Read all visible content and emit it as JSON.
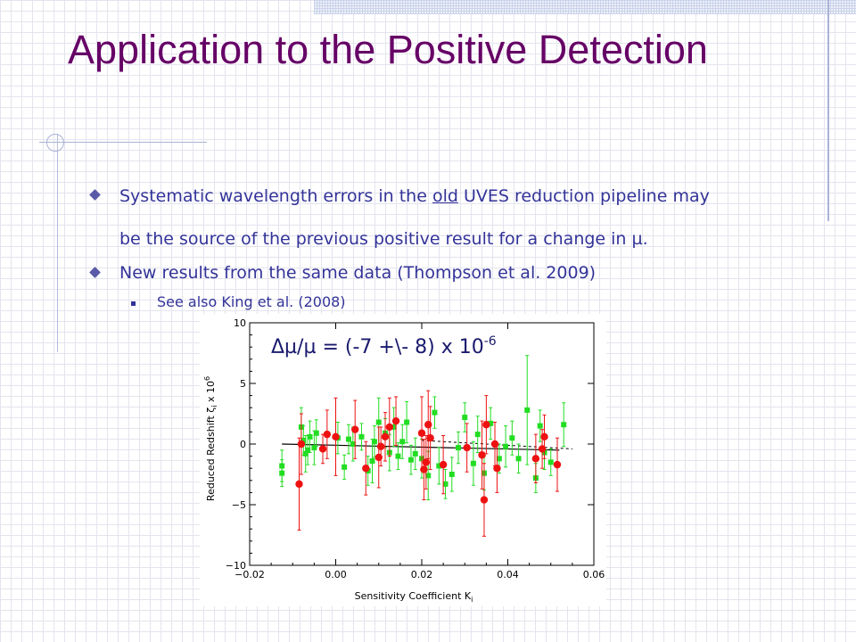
{
  "slide": {
    "title": "Application to the Positive Detection",
    "bullets": [
      {
        "pre": "Systematic wavelength errors in the ",
        "underline": "old",
        "post": " UVES reduction pipeline may",
        "line2": "be the source of the previous positive result for a change in µ."
      },
      {
        "text": "New results from the same data (Thompson et al. 2009)"
      }
    ],
    "sub_bullets": [
      "See also King et al. (2008)"
    ]
  },
  "chart_data": {
    "type": "scatter",
    "annotation": {
      "main": "Δµ/µ = (-7 +\\- 8) x 10",
      "sup": "-6"
    },
    "xlabel": "Sensitivity Coefficient K",
    "xlabel_sub": "i",
    "ylabel": "Reduced Redshift ζ",
    "ylabel_sub": "i",
    "ylabel_suffix": "x 10",
    "ylabel_sup": "6",
    "xlim": [
      -0.02,
      0.06
    ],
    "ylim": [
      -10,
      10
    ],
    "xticks": [
      -0.02,
      0.0,
      0.02,
      0.04,
      0.06
    ],
    "xtick_labels": [
      "−0.02",
      "0.00",
      "0.02",
      "0.04",
      "0.06"
    ],
    "yticks": [
      -10,
      -5,
      0,
      5,
      10
    ],
    "ytick_labels": [
      "−10",
      "−5",
      "0",
      "5",
      "10"
    ],
    "colors": {
      "green": "#22dd22",
      "red": "#ee1111",
      "fit": "#000000"
    },
    "fit_line": {
      "x": [
        -0.0125,
        0.052
      ],
      "y": [
        0.0,
        -0.5
      ]
    },
    "dashed_line": {
      "x": [
        0.02,
        0.055
      ],
      "y": [
        0.3,
        -0.4
      ]
    },
    "series": [
      {
        "color": "green",
        "points": [
          {
            "x": -0.0125,
            "y": -1.8,
            "e": 1.3
          },
          {
            "x": -0.0125,
            "y": -2.4,
            "e": 1.1
          },
          {
            "x": -0.008,
            "y": 1.4,
            "e": 1.6
          },
          {
            "x": -0.0075,
            "y": 0.3,
            "e": 1.2
          },
          {
            "x": -0.007,
            "y": -0.8,
            "e": 1.5
          },
          {
            "x": -0.0065,
            "y": -0.5,
            "e": 1.2
          },
          {
            "x": -0.006,
            "y": 0.6,
            "e": 1.3
          },
          {
            "x": -0.005,
            "y": -0.3,
            "e": 1.4
          },
          {
            "x": -0.0045,
            "y": 0.9,
            "e": 1.1
          },
          {
            "x": 0.0005,
            "y": 0.5,
            "e": 1.3
          },
          {
            "x": 0.002,
            "y": -1.9,
            "e": 1.0
          },
          {
            "x": 0.003,
            "y": 0.4,
            "e": 1.2
          },
          {
            "x": 0.004,
            "y": 0.0,
            "e": 1.4
          },
          {
            "x": 0.006,
            "y": 0.6,
            "e": 1.1
          },
          {
            "x": 0.0075,
            "y": -2.2,
            "e": 1.2
          },
          {
            "x": 0.0085,
            "y": -1.4,
            "e": 1.8
          },
          {
            "x": 0.009,
            "y": 0.2,
            "e": 1.3
          },
          {
            "x": 0.01,
            "y": 1.8,
            "e": 2.0
          },
          {
            "x": 0.0115,
            "y": 0.9,
            "e": 1.2
          },
          {
            "x": 0.0125,
            "y": -0.7,
            "e": 1.5
          },
          {
            "x": 0.0135,
            "y": 1.4,
            "e": 1.6
          },
          {
            "x": 0.0145,
            "y": -1.0,
            "e": 1.1
          },
          {
            "x": 0.0155,
            "y": 0.2,
            "e": 1.4
          },
          {
            "x": 0.0165,
            "y": 1.8,
            "e": 1.7
          },
          {
            "x": 0.0175,
            "y": -1.3,
            "e": 1.2
          },
          {
            "x": 0.0185,
            "y": -0.8,
            "e": 1.3
          },
          {
            "x": 0.02,
            "y": -1.2,
            "e": 1.6
          },
          {
            "x": 0.0215,
            "y": -2.6,
            "e": 2.0
          },
          {
            "x": 0.023,
            "y": 2.6,
            "e": 1.3
          },
          {
            "x": 0.024,
            "y": -1.8,
            "e": 1.5
          },
          {
            "x": 0.0255,
            "y": -3.3,
            "e": 1.2
          },
          {
            "x": 0.027,
            "y": -2.5,
            "e": 1.4
          },
          {
            "x": 0.0285,
            "y": -0.3,
            "e": 1.3
          },
          {
            "x": 0.03,
            "y": 2.2,
            "e": 1.2
          },
          {
            "x": 0.032,
            "y": -1.6,
            "e": 1.8
          },
          {
            "x": 0.033,
            "y": 0.8,
            "e": 1.5
          },
          {
            "x": 0.0345,
            "y": -2.4,
            "e": 1.4
          },
          {
            "x": 0.036,
            "y": 1.7,
            "e": 1.3
          },
          {
            "x": 0.038,
            "y": -1.2,
            "e": 1.2
          },
          {
            "x": 0.0395,
            "y": -0.2,
            "e": 1.7
          },
          {
            "x": 0.041,
            "y": 0.5,
            "e": 1.4
          },
          {
            "x": 0.0425,
            "y": -1.2,
            "e": 1.2
          },
          {
            "x": 0.0445,
            "y": 2.8,
            "e": 4.5
          },
          {
            "x": 0.0465,
            "y": -2.8,
            "e": 1.2
          },
          {
            "x": 0.0475,
            "y": 1.5,
            "e": 1.3
          },
          {
            "x": 0.0485,
            "y": -0.7,
            "e": 1.4
          },
          {
            "x": 0.05,
            "y": -1.5,
            "e": 1.1
          },
          {
            "x": 0.053,
            "y": 1.6,
            "e": 1.8
          }
        ]
      },
      {
        "color": "red",
        "points": [
          {
            "x": -0.0085,
            "y": -3.3,
            "e": 3.8
          },
          {
            "x": -0.008,
            "y": 0.0,
            "e": 2.5
          },
          {
            "x": -0.003,
            "y": -0.4,
            "e": 1.2
          },
          {
            "x": -0.002,
            "y": 0.8,
            "e": 2.0
          },
          {
            "x": 0.0,
            "y": 0.6,
            "e": 3.2
          },
          {
            "x": 0.0045,
            "y": 1.2,
            "e": 2.4
          },
          {
            "x": 0.007,
            "y": -2.0,
            "e": 2.2
          },
          {
            "x": 0.01,
            "y": -1.1,
            "e": 2.5
          },
          {
            "x": 0.0105,
            "y": -0.2,
            "e": 1.6
          },
          {
            "x": 0.0115,
            "y": 0.6,
            "e": 2.0
          },
          {
            "x": 0.0125,
            "y": 1.4,
            "e": 2.4
          },
          {
            "x": 0.014,
            "y": 1.9,
            "e": 2.0
          },
          {
            "x": 0.02,
            "y": 0.9,
            "e": 3.0
          },
          {
            "x": 0.0205,
            "y": -2.1,
            "e": 2.5
          },
          {
            "x": 0.021,
            "y": -1.5,
            "e": 2.2
          },
          {
            "x": 0.0215,
            "y": 1.6,
            "e": 2.8
          },
          {
            "x": 0.022,
            "y": 0.5,
            "e": 2.6
          },
          {
            "x": 0.025,
            "y": -1.7,
            "e": 2.4
          },
          {
            "x": 0.0305,
            "y": -0.3,
            "e": 2.0
          },
          {
            "x": 0.034,
            "y": -0.9,
            "e": 2.8
          },
          {
            "x": 0.0345,
            "y": -4.6,
            "e": 3.0
          },
          {
            "x": 0.035,
            "y": 1.6,
            "e": 2.4
          },
          {
            "x": 0.037,
            "y": 0.0,
            "e": 1.8
          },
          {
            "x": 0.0375,
            "y": -2.0,
            "e": 2.0
          },
          {
            "x": 0.0465,
            "y": -1.2,
            "e": 2.0
          },
          {
            "x": 0.048,
            "y": -0.4,
            "e": 1.6
          },
          {
            "x": 0.0485,
            "y": 0.6,
            "e": 1.8
          },
          {
            "x": 0.0515,
            "y": -1.7,
            "e": 2.2
          }
        ]
      }
    ]
  }
}
